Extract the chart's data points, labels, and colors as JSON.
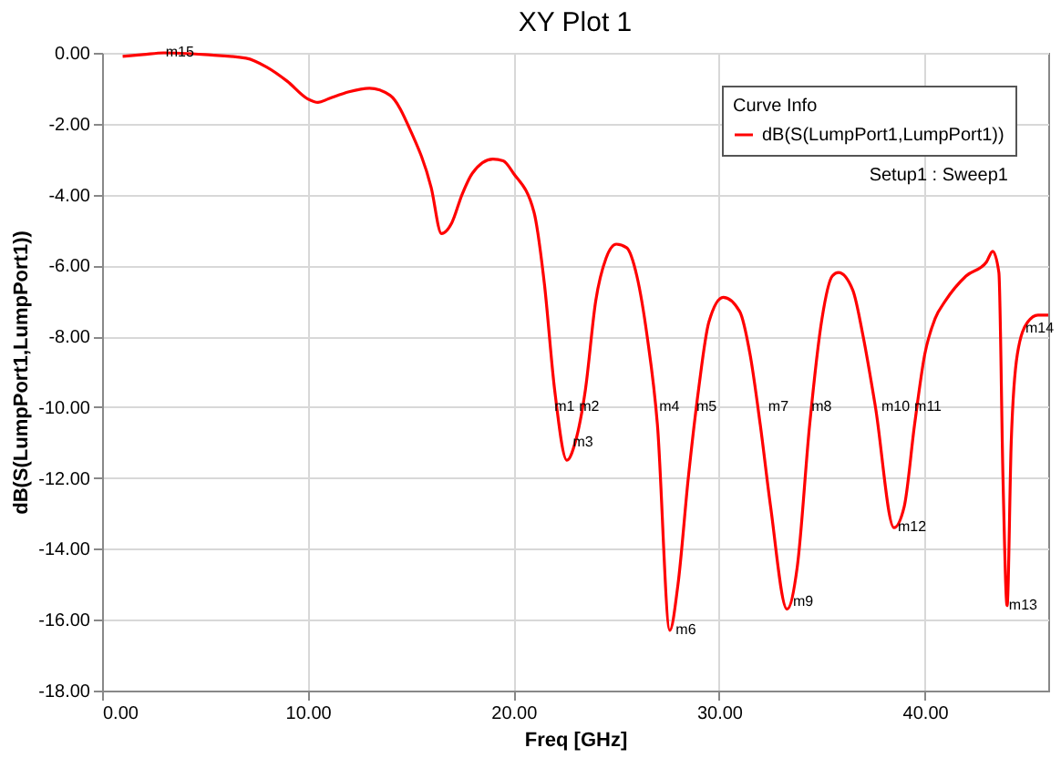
{
  "chart_data": {
    "type": "line",
    "title": "XY Plot 1",
    "xlabel": "Freq [GHz]",
    "ylabel": "dB(S(LumpPort1,LumpPort1))",
    "legend_title": "Curve Info",
    "x": [
      1,
      2,
      3,
      5,
      7,
      8,
      9,
      10,
      10.5,
      11,
      12,
      13,
      14,
      15,
      16,
      16.5,
      17,
      17.5,
      18,
      19,
      19.5,
      20,
      21,
      21.5,
      22,
      22.6,
      23,
      23.5,
      24,
      24.5,
      25,
      25.5,
      26,
      26.5,
      27,
      27.6,
      28,
      28.5,
      29,
      29.5,
      30.2,
      31,
      31.5,
      32,
      32.5,
      33.3,
      33.8,
      34.4,
      35,
      35.5,
      35.8,
      36.5,
      37,
      37.6,
      38.5,
      39,
      39.5,
      40,
      40.5,
      41,
      42,
      43,
      43.3,
      43.6,
      43.8,
      44,
      44.2,
      44.5,
      45,
      45.5,
      46
    ],
    "series": [
      {
        "name": "dB(S(LumpPort1,LumpPort1))",
        "color": "#ff0000",
        "values": [
          -0.1,
          -0.05,
          0,
          -0.05,
          -0.15,
          -0.4,
          -0.8,
          -1.3,
          -1.4,
          -1.3,
          -1.1,
          -1.0,
          -1.2,
          -2.2,
          -3.8,
          -5.1,
          -4.8,
          -4.0,
          -3.4,
          -3.0,
          -3.05,
          -3.4,
          -4.5,
          -6.5,
          -9.5,
          -11.5,
          -11,
          -9.5,
          -7,
          -5.8,
          -5.4,
          -5.5,
          -6.3,
          -8,
          -10.5,
          -16.3,
          -15,
          -12,
          -9.5,
          -7.6,
          -6.9,
          -7.3,
          -8.5,
          -10.5,
          -12.8,
          -15.7,
          -14.5,
          -10.5,
          -7.5,
          -6.3,
          -6.2,
          -6.7,
          -8,
          -10,
          -13.4,
          -12.8,
          -10.5,
          -8.5,
          -7.5,
          -7,
          -6.3,
          -5.9,
          -5.6,
          -6.2,
          -12,
          -15.6,
          -11,
          -8.5,
          -7.6,
          -7.4,
          -7.4
        ]
      }
    ],
    "xlim": [
      0,
      46
    ],
    "xticks": [
      {
        "value": 0,
        "label": "0.00"
      },
      {
        "value": 10,
        "label": "10.00"
      },
      {
        "value": 20,
        "label": "20.00"
      },
      {
        "value": 30,
        "label": "30.00"
      },
      {
        "value": 40,
        "label": "40.00"
      }
    ],
    "ylim": [
      -18,
      0
    ],
    "yticks": [
      {
        "value": 0,
        "label": "0.00"
      },
      {
        "value": -2,
        "label": "-2.00"
      },
      {
        "value": -4,
        "label": "-4.00"
      },
      {
        "value": -6,
        "label": "-6.00"
      },
      {
        "value": -8,
        "label": "-8.00"
      },
      {
        "value": -10,
        "label": "-10.00"
      },
      {
        "value": -12,
        "label": "-12.00"
      },
      {
        "value": -14,
        "label": "-14.00"
      },
      {
        "value": -16,
        "label": "-16.00"
      },
      {
        "value": -18,
        "label": "-18.00"
      }
    ],
    "grid": true,
    "legend": "top right",
    "line_style": "solid",
    "annotations": [
      {
        "text": "m1",
        "x": 21.9,
        "y": -10
      },
      {
        "text": "m2",
        "x": 23.1,
        "y": -10
      },
      {
        "text": "m3",
        "x": 22.8,
        "y": -11
      },
      {
        "text": "m4",
        "x": 27,
        "y": -10
      },
      {
        "text": "m5",
        "x": 28.8,
        "y": -10
      },
      {
        "text": "m6",
        "x": 27.8,
        "y": -16.3
      },
      {
        "text": "m7",
        "x": 32.3,
        "y": -10
      },
      {
        "text": "m8",
        "x": 34.4,
        "y": -10
      },
      {
        "text": "m9",
        "x": 33.5,
        "y": -15.5
      },
      {
        "text": "m10",
        "x": 37.8,
        "y": -10
      },
      {
        "text": "m11",
        "x": 39.4,
        "y": -10
      },
      {
        "text": "m12",
        "x": 38.6,
        "y": -13.4
      },
      {
        "text": "m13",
        "x": 44,
        "y": -15.6
      },
      {
        "text": "m14",
        "x": 44.8,
        "y": -7.8
      },
      {
        "text": "m15",
        "x": 3,
        "y": 0
      },
      "Setup1 : Sweep1"
    ]
  }
}
